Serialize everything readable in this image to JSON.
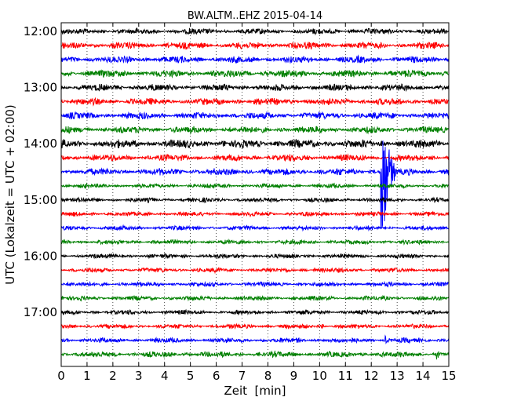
{
  "chart_data": {
    "type": "line",
    "title": "BW.ALTM..EHZ 2015-04-14",
    "xlabel": "Zeit  [min]",
    "ylabel": "UTC (Lokalzeit = UTC + 02:00)",
    "xlim": [
      0,
      15
    ],
    "x_ticks": [
      "0",
      "1",
      "2",
      "3",
      "4",
      "5",
      "6",
      "7",
      "8",
      "9",
      "10",
      "11",
      "12",
      "13",
      "14",
      "15"
    ],
    "y_tick_labels": [
      "12:00",
      "13:00",
      "14:00",
      "15:00",
      "16:00",
      "17:00"
    ],
    "grid": "dotted vertical lines at every minute",
    "row_interval_min": 15,
    "trace_color_cycle": [
      "#000000",
      "#ff0000",
      "#0000ff",
      "#008000"
    ],
    "series": [
      {
        "start": "12:00",
        "noise_amplitude": 1.0
      },
      {
        "start": "12:15",
        "noise_amplitude": 1.2
      },
      {
        "start": "12:30",
        "noise_amplitude": 1.2
      },
      {
        "start": "12:45",
        "noise_amplitude": 1.3
      },
      {
        "start": "13:00",
        "noise_amplitude": 1.2
      },
      {
        "start": "13:15",
        "noise_amplitude": 1.2
      },
      {
        "start": "13:30",
        "noise_amplitude": 1.2
      },
      {
        "start": "13:45",
        "noise_amplitude": 1.2
      },
      {
        "start": "14:00",
        "noise_amplitude": 1.5
      },
      {
        "start": "14:15",
        "noise_amplitude": 1.2
      },
      {
        "start": "14:30",
        "noise_amplitude": 1.2
      },
      {
        "start": "14:45",
        "noise_amplitude": 0.8
      },
      {
        "start": "15:00",
        "noise_amplitude": 0.8
      },
      {
        "start": "15:15",
        "noise_amplitude": 0.8
      },
      {
        "start": "15:30",
        "noise_amplitude": 0.8
      },
      {
        "start": "15:45",
        "noise_amplitude": 0.8
      },
      {
        "start": "16:00",
        "noise_amplitude": 0.8
      },
      {
        "start": "16:15",
        "noise_amplitude": 0.8
      },
      {
        "start": "16:30",
        "noise_amplitude": 0.8
      },
      {
        "start": "16:45",
        "noise_amplitude": 0.8
      },
      {
        "start": "17:00",
        "noise_amplitude": 0.8
      },
      {
        "start": "17:15",
        "noise_amplitude": 0.8
      },
      {
        "start": "17:30",
        "noise_amplitude": 0.9
      },
      {
        "start": "17:45",
        "noise_amplitude": 1.0
      }
    ],
    "events": [
      {
        "row_start": "12:00",
        "minute": 4.95,
        "amplitude": 3
      },
      {
        "row_start": "14:30",
        "minute": 12.4,
        "amplitude": 125,
        "coda_min": 0.55
      },
      {
        "row_start": "16:15",
        "minute": 9.8,
        "amplitude": 3
      },
      {
        "row_start": "17:00",
        "minute": 9.25,
        "amplitude": 3
      },
      {
        "row_start": "17:15",
        "minute": 10.1,
        "amplitude": 2
      },
      {
        "row_start": "17:30",
        "minute": 12.55,
        "amplitude": 4
      },
      {
        "row_start": "17:45",
        "minute": 14.55,
        "amplitude": 7
      }
    ]
  }
}
